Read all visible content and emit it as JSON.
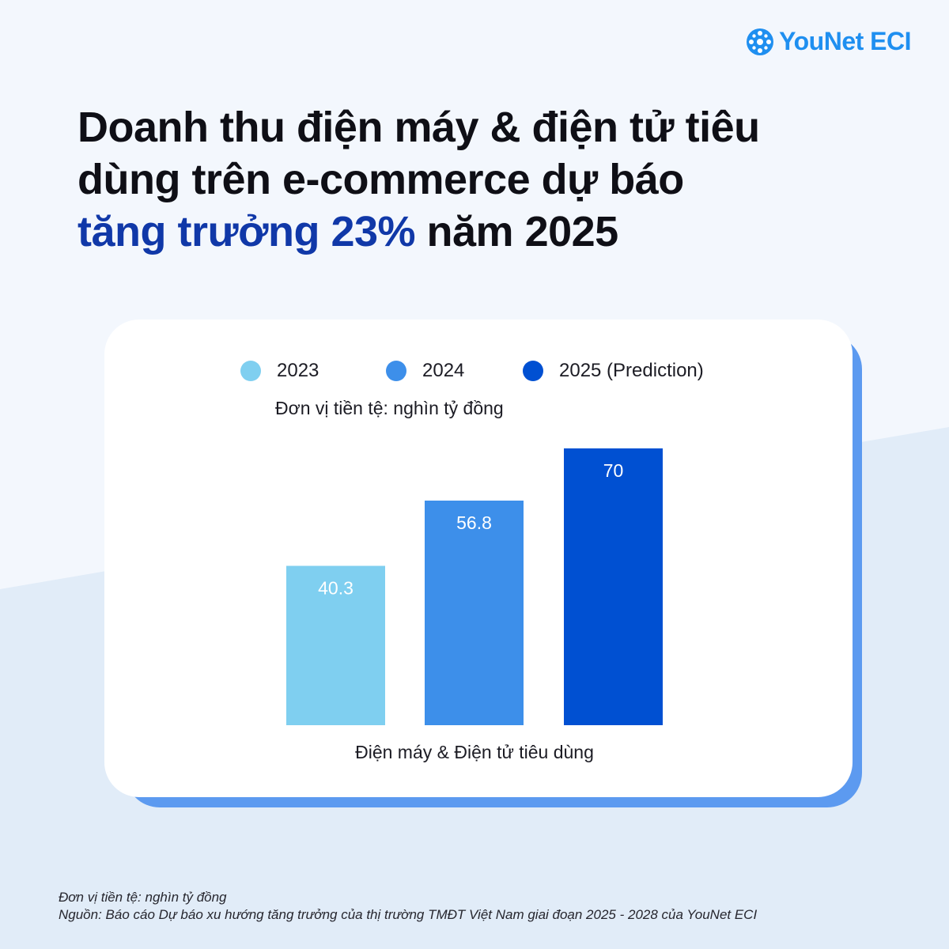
{
  "brand": {
    "name": "YouNet ECI"
  },
  "title": {
    "line1": "Doanh thu điện máy & điện tử tiêu",
    "line2": "dùng trên e-commerce dự báo",
    "highlight": "tăng trưởng 23%",
    "line3_rest": " năm 2025"
  },
  "colors": {
    "accent": "#1038a8",
    "brand": "#1f8ff0",
    "series_2023": "#7fcff0",
    "series_2024": "#3d8fea",
    "series_2025": "#0050d2"
  },
  "chart_data": {
    "type": "bar",
    "categories": [
      "Điện máy & Điện tử tiêu dùng"
    ],
    "series": [
      {
        "name": "2023",
        "values": [
          40.3
        ],
        "color": "#7fcff0"
      },
      {
        "name": "2024",
        "values": [
          56.8
        ],
        "color": "#3d8fea"
      },
      {
        "name": "2025 (Prediction)",
        "values": [
          70
        ],
        "color": "#0050d2"
      }
    ],
    "unit_label": "Đơn vị tiền tệ: nghìn tỷ đồng",
    "xlabel": "Điện máy & Điện tử tiêu dùng",
    "ylim": [
      0,
      70
    ],
    "grid": false,
    "legend_position": "top"
  },
  "footer": {
    "unit": "Đơn vị tiền tệ: nghìn tỷ đồng",
    "source": "Nguồn: Báo cáo Dự báo xu hướng tăng trưởng của thị trường TMĐT Việt Nam giai đoạn 2025 - 2028 của YouNet ECI"
  }
}
